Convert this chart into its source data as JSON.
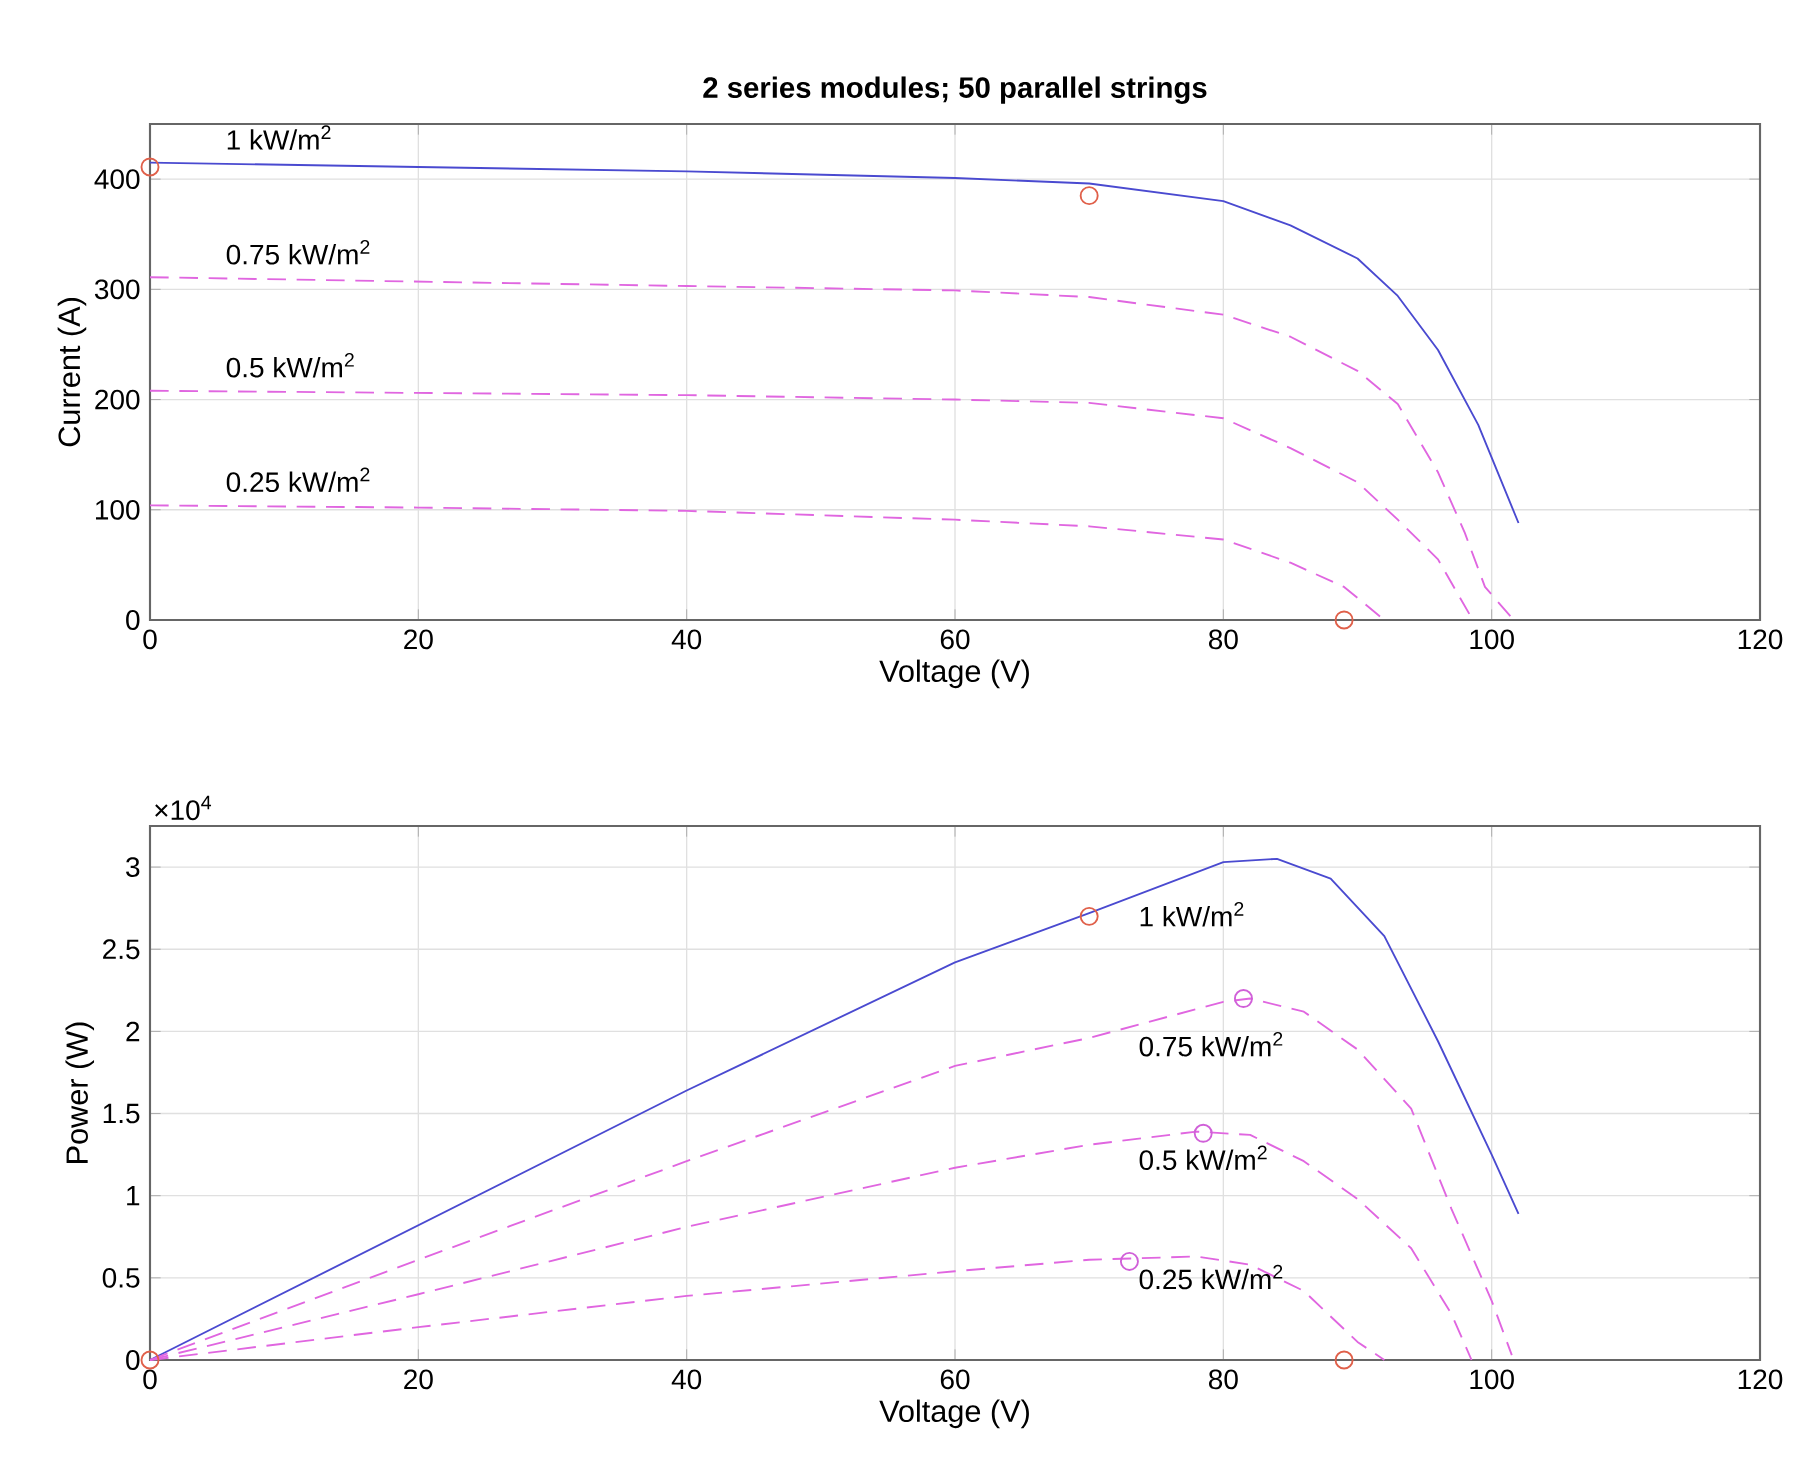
{
  "chart_data": [
    {
      "type": "line",
      "title": "2 series modules; 50 parallel strings",
      "xlabel": "Voltage (V)",
      "ylabel": "Current (A)",
      "xlim": [
        0,
        120
      ],
      "ylim": [
        0,
        450
      ],
      "xticks": [
        0,
        20,
        40,
        60,
        80,
        100,
        120
      ],
      "yticks": [
        0,
        100,
        200,
        300,
        400
      ],
      "grid": true,
      "series": [
        {
          "name": "1 kW/m$^{2}$",
          "color": "#4a4ad0",
          "line_style": "solid",
          "marker": "none",
          "x": [
            0,
            20,
            40,
            60,
            70,
            80,
            85,
            90,
            93,
            96,
            99,
            102
          ],
          "values": [
            415,
            411,
            407,
            401,
            396,
            380,
            358,
            328,
            294,
            245,
            177,
            88
          ]
        },
        {
          "name": "0.75 kW/m$^{2}$",
          "color": "#e066e0",
          "line_style": "dashed",
          "marker": "none",
          "x": [
            0,
            20,
            40,
            60,
            70,
            80,
            85,
            90,
            93,
            96,
            98,
            99.5,
            101.5
          ],
          "values": [
            311,
            307,
            303,
            299,
            293,
            277,
            257,
            226,
            196,
            134,
            79,
            30,
            2
          ]
        },
        {
          "name": "0.5 kW/m$^{2}$",
          "color": "#e066e0",
          "line_style": "dashed",
          "marker": "none",
          "x": [
            0,
            20,
            40,
            60,
            70,
            80,
            85,
            90,
            93,
            96,
            98.5
          ],
          "values": [
            208,
            206,
            204,
            200,
            197,
            183,
            156,
            125,
            91,
            55,
            2
          ]
        },
        {
          "name": "0.25 kW/m$^{2}$",
          "color": "#e066e0",
          "line_style": "dashed",
          "marker": "none",
          "x": [
            0,
            20,
            40,
            60,
            70,
            80,
            85,
            89,
            92
          ],
          "values": [
            104,
            102,
            99,
            91,
            85,
            73,
            52,
            30,
            0
          ]
        },
        {
          "type": "scatter",
          "color": "#e0604a",
          "marker": "circle",
          "x": [
            0,
            70,
            89
          ],
          "values": [
            411,
            385,
            0
          ]
        }
      ]
    },
    {
      "type": "line",
      "xlabel": "Voltage (V)",
      "ylabel": "Power (W)",
      "xlim": [
        0,
        120
      ],
      "ylim": [
        0,
        3.25
      ],
      "xticks": [
        0,
        20,
        40,
        60,
        80,
        100,
        120
      ],
      "yticks": [
        0,
        0.5,
        1,
        1.5,
        2,
        2.5,
        3
      ],
      "grid": true,
      "series": [
        {
          "name": "1 kW/m$^{2}$",
          "color": "#4a4ad0",
          "line_style": "solid",
          "marker": "none",
          "x": [
            0,
            20,
            40,
            60,
            70,
            80,
            84,
            88,
            92,
            96,
            100,
            102
          ],
          "values": [
            0,
            0.82,
            1.64,
            2.42,
            2.72,
            3.03,
            3.05,
            2.93,
            2.58,
            1.94,
            1.25,
            0.89
          ]
        },
        {
          "name": "0.75 kW/m$^{2}$",
          "color": "#e066e0",
          "line_style": "dashed",
          "marker": "none",
          "x": [
            0,
            20,
            40,
            60,
            70,
            80,
            82,
            86,
            90,
            94,
            97,
            100,
            101.5
          ],
          "values": [
            0,
            0.61,
            1.21,
            1.79,
            1.96,
            2.18,
            2.2,
            2.12,
            1.89,
            1.53,
            0.92,
            0.36,
            0.03
          ]
        },
        {
          "name": "0.5 kW/m$^{2}$",
          "color": "#e066e0",
          "line_style": "dashed",
          "marker": "none",
          "x": [
            0,
            20,
            40,
            60,
            70,
            78,
            82,
            86,
            90,
            94,
            97,
            98.5
          ],
          "values": [
            0,
            0.4,
            0.81,
            1.17,
            1.31,
            1.39,
            1.37,
            1.21,
            0.98,
            0.68,
            0.28,
            0
          ]
        },
        {
          "name": "0.25 kW/m$^{2}$",
          "color": "#e066e0",
          "line_style": "dashed",
          "marker": "none",
          "x": [
            0,
            20,
            40,
            60,
            70,
            78,
            82,
            86,
            90,
            92
          ],
          "values": [
            0,
            0.2,
            0.39,
            0.54,
            0.61,
            0.63,
            0.58,
            0.42,
            0.11,
            0
          ]
        },
        {
          "type": "scatter",
          "color": "#e0604a",
          "marker": "circle",
          "x": [
            0,
            70,
            89
          ],
          "values": [
            0,
            2.7,
            0
          ]
        },
        {
          "type": "scatter",
          "color": "#d060d8",
          "marker": "circle",
          "x": [
            81.5,
            78.5,
            73
          ],
          "values": [
            2.2,
            1.38,
            0.6
          ]
        }
      ],
      "annotations": [
        "×10$^{4}$"
      ]
    }
  ]
}
